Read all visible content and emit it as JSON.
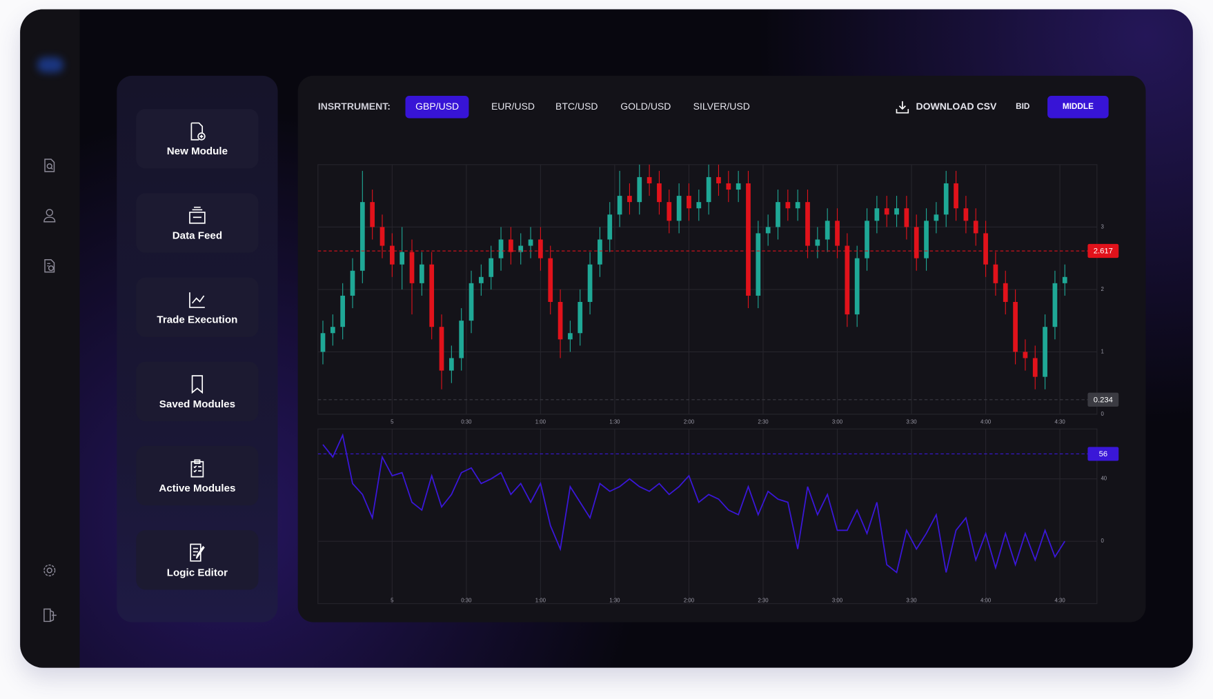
{
  "menu": {
    "items": [
      "New Module",
      "Data Feed",
      "Trade Execution",
      "Saved Modules",
      "Active Modules",
      "Logic Editor"
    ]
  },
  "toolbar": {
    "label": "INSRTRUMENT:",
    "instruments": [
      "GBP/USD",
      "EUR/USD",
      "BTC/USD",
      "GOLD/USD",
      "SILVER/USD"
    ],
    "selected_instrument": 0,
    "download": "DOWNLOAD CSV",
    "modes": [
      "BID",
      "MIDDLE"
    ],
    "selected_mode": 1
  },
  "chart_data": [
    {
      "type": "candlestick",
      "colors": {
        "up": "#1fa896",
        "down": "#e1121b"
      },
      "x": [
        -28,
        -24,
        -20,
        -16,
        -12,
        -8,
        -4,
        0,
        4,
        8,
        12,
        16,
        20,
        24,
        28,
        32,
        36,
        40,
        44,
        48,
        52,
        56,
        60,
        64,
        68,
        72,
        76,
        80,
        84,
        88,
        92,
        96,
        100,
        104,
        108,
        112,
        116,
        120,
        124,
        128,
        132,
        136,
        140,
        144,
        148,
        152,
        156,
        160,
        164,
        168,
        172,
        176,
        180,
        184,
        188,
        192,
        196,
        200,
        204,
        208,
        212,
        216,
        220,
        224,
        228,
        232,
        236,
        240,
        244,
        248,
        252,
        256,
        260,
        264,
        268,
        272
      ],
      "open": [
        1.0,
        1.3,
        1.4,
        1.9,
        2.3,
        3.4,
        3.0,
        2.7,
        2.4,
        2.6,
        2.1,
        2.4,
        1.4,
        0.7,
        0.9,
        1.5,
        2.1,
        2.2,
        2.5,
        2.8,
        2.6,
        2.7,
        2.8,
        2.5,
        1.8,
        1.2,
        1.3,
        1.8,
        2.4,
        2.8,
        3.2,
        3.5,
        3.4,
        3.8,
        3.7,
        3.4,
        3.1,
        3.5,
        3.3,
        3.4,
        3.8,
        3.7,
        3.6,
        3.7,
        1.9,
        2.9,
        3.0,
        3.4,
        3.3,
        3.4,
        2.7,
        2.8,
        3.1,
        2.7,
        1.6,
        2.5,
        3.1,
        3.3,
        3.2,
        3.3,
        3.0,
        2.5,
        3.1,
        3.2,
        3.7,
        3.3,
        3.1,
        2.9,
        2.4,
        2.1,
        1.8,
        1.0,
        0.9,
        0.6,
        1.4,
        2.1
      ],
      "high": [
        1.5,
        1.6,
        2.1,
        2.5,
        3.9,
        3.6,
        3.2,
        2.9,
        3.0,
        2.8,
        2.6,
        2.6,
        1.6,
        1.1,
        1.7,
        2.3,
        2.4,
        2.7,
        3.0,
        3.0,
        2.9,
        3.0,
        3.0,
        2.7,
        2.0,
        1.5,
        2.0,
        2.6,
        3.0,
        3.4,
        3.9,
        3.7,
        4.0,
        4.0,
        3.9,
        3.6,
        3.7,
        3.7,
        3.6,
        4.0,
        4.0,
        3.9,
        3.9,
        3.9,
        3.1,
        3.2,
        3.6,
        3.6,
        3.6,
        3.6,
        3.0,
        3.3,
        3.3,
        2.9,
        2.7,
        3.3,
        3.5,
        3.5,
        3.5,
        3.5,
        3.2,
        3.3,
        3.4,
        3.9,
        3.9,
        3.5,
        3.3,
        3.1,
        2.6,
        2.3,
        2.0,
        1.2,
        1.1,
        1.6,
        2.3,
        2.4
      ],
      "low": [
        0.8,
        1.1,
        1.2,
        1.7,
        2.1,
        2.8,
        2.5,
        2.2,
        2.0,
        1.6,
        1.9,
        1.2,
        0.4,
        0.5,
        0.7,
        1.3,
        1.9,
        2.0,
        2.3,
        2.4,
        2.4,
        2.5,
        2.3,
        1.6,
        0.9,
        1.0,
        1.1,
        1.6,
        2.2,
        2.6,
        3.0,
        3.2,
        3.2,
        3.5,
        3.2,
        2.9,
        2.9,
        3.1,
        3.1,
        3.2,
        3.5,
        3.4,
        3.4,
        1.7,
        1.7,
        2.7,
        2.8,
        3.1,
        3.1,
        2.5,
        2.5,
        2.6,
        2.5,
        1.4,
        1.4,
        2.3,
        2.9,
        3.0,
        3.0,
        2.8,
        2.3,
        2.3,
        2.9,
        3.0,
        3.1,
        2.9,
        2.7,
        2.2,
        1.9,
        1.6,
        0.8,
        0.7,
        0.4,
        0.4,
        1.2,
        1.9
      ],
      "close": [
        1.3,
        1.4,
        1.9,
        2.3,
        3.4,
        3.0,
        2.7,
        2.4,
        2.6,
        2.1,
        2.4,
        1.4,
        0.7,
        0.9,
        1.5,
        2.1,
        2.2,
        2.5,
        2.8,
        2.6,
        2.7,
        2.8,
        2.5,
        1.8,
        1.2,
        1.3,
        1.8,
        2.4,
        2.8,
        3.2,
        3.5,
        3.4,
        3.8,
        3.7,
        3.4,
        3.1,
        3.5,
        3.3,
        3.4,
        3.8,
        3.7,
        3.6,
        3.7,
        1.9,
        2.9,
        3.0,
        3.4,
        3.3,
        3.4,
        2.7,
        2.8,
        3.1,
        2.7,
        1.6,
        2.5,
        3.1,
        3.3,
        3.2,
        3.3,
        3.0,
        2.5,
        3.1,
        3.2,
        3.7,
        3.3,
        3.1,
        2.9,
        2.4,
        2.1,
        1.8,
        1.0,
        0.9,
        0.6,
        1.4,
        2.1,
        2.2
      ],
      "xlim": [
        -30,
        285
      ],
      "xticks": [
        {
          "value": 0,
          "label": "5"
        },
        {
          "value": 30,
          "label": "0:30"
        },
        {
          "value": 60,
          "label": "1:00"
        },
        {
          "value": 90,
          "label": "1:30"
        },
        {
          "value": 120,
          "label": "2:00"
        },
        {
          "value": 150,
          "label": "2:30"
        },
        {
          "value": 180,
          "label": "3:00"
        },
        {
          "value": 210,
          "label": "3:30"
        },
        {
          "value": 240,
          "label": "4:00"
        },
        {
          "value": 270,
          "label": "4:30"
        }
      ],
      "ylim": [
        0,
        4
      ],
      "yticks": [
        0,
        1,
        2,
        3
      ],
      "grid": true,
      "price_lines": [
        {
          "value": 2.617,
          "color": "#e1121b"
        },
        {
          "value": 0.234,
          "color": "#3b3b42"
        }
      ]
    },
    {
      "type": "line",
      "color": "#3a17d8",
      "x": [
        -28,
        -24,
        -20,
        -16,
        -12,
        -8,
        -4,
        0,
        4,
        8,
        12,
        16,
        20,
        24,
        28,
        32,
        36,
        40,
        44,
        48,
        52,
        56,
        60,
        64,
        68,
        72,
        76,
        80,
        84,
        88,
        92,
        96,
        100,
        104,
        108,
        112,
        116,
        120,
        124,
        128,
        132,
        136,
        140,
        144,
        148,
        152,
        156,
        160,
        164,
        168,
        172,
        176,
        180,
        184,
        188,
        192,
        196,
        200,
        204,
        208,
        212,
        216,
        220,
        224,
        228,
        232,
        236,
        240,
        244,
        248,
        252,
        256,
        260,
        264,
        268,
        272
      ],
      "values": [
        62,
        54,
        68,
        37,
        30,
        15,
        54,
        42,
        44,
        25,
        20,
        42,
        22,
        30,
        44,
        47,
        37,
        40,
        44,
        30,
        37,
        25,
        37,
        10,
        -5,
        35,
        25,
        15,
        37,
        32,
        35,
        40,
        35,
        32,
        37,
        30,
        35,
        42,
        25,
        30,
        27,
        20,
        17,
        35,
        17,
        32,
        27,
        25,
        -5,
        35,
        17,
        30,
        7,
        7,
        20,
        5,
        25,
        -15,
        -20,
        7,
        -5,
        5,
        17,
        -20,
        7,
        15,
        -12,
        5,
        -17,
        5,
        -15,
        5,
        -12,
        7,
        -10,
        0
      ],
      "xlim": [
        -30,
        285
      ],
      "xticks": [
        {
          "value": 0,
          "label": "5"
        },
        {
          "value": 30,
          "label": "0:30"
        },
        {
          "value": 60,
          "label": "1:00"
        },
        {
          "value": 90,
          "label": "1:30"
        },
        {
          "value": 120,
          "label": "2:00"
        },
        {
          "value": 150,
          "label": "2:30"
        },
        {
          "value": 180,
          "label": "3:00"
        },
        {
          "value": 210,
          "label": "3:30"
        },
        {
          "value": 240,
          "label": "4:00"
        },
        {
          "value": 270,
          "label": "4:30"
        }
      ],
      "ylim": [
        -40,
        72
      ],
      "yticks": [
        0,
        40
      ],
      "grid": true,
      "price_lines": [
        {
          "value": 56,
          "color": "#3a17d8"
        }
      ]
    }
  ]
}
